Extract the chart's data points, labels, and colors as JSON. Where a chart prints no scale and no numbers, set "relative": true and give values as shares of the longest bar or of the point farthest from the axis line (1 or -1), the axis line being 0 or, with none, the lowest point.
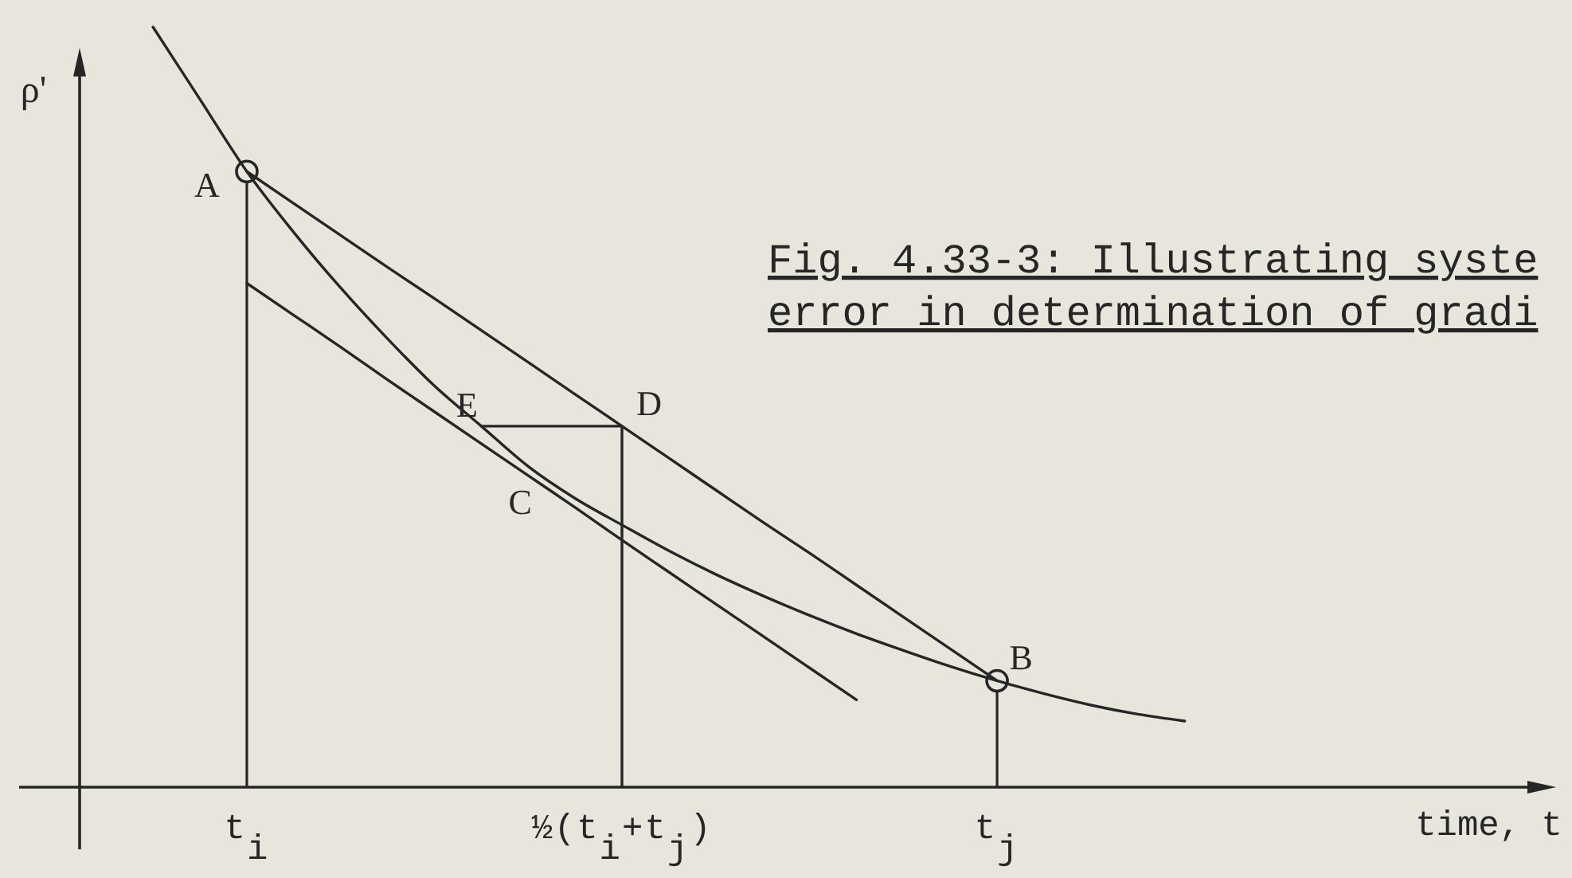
{
  "chart_data": {
    "type": "line",
    "relative": true,
    "ylabel": "ρ'",
    "categories": [
      null,
      null,
      "t$_{i}$",
      null,
      null,
      null,
      null,
      null,
      null,
      null,
      "½(t$_{i}$+t$_{j}$)",
      null,
      null,
      null,
      null,
      null,
      null,
      null,
      "t$_{j}$",
      null,
      null,
      null,
      null
    ],
    "series": [
      {
        "color": "#262626",
        "values": [
          1,
          0.905,
          0.81,
          0.73,
          0.657,
          0.59,
          0.528,
          0.475,
          0.422,
          0.38,
          0.345,
          0.311,
          0.28,
          0.252,
          0.226,
          0.202,
          0.18,
          0.159,
          0.14,
          0.123,
          0.108,
          0.096,
          0.087
        ]
      },
      {
        "color": "#262626",
        "values": [
          null,
          null,
          0.81,
          0.768,
          0.726,
          0.684,
          0.643,
          0.601,
          0.559,
          0.517,
          0.475,
          0.433,
          0.391,
          0.349,
          0.308,
          0.266,
          0.224,
          0.182,
          0.14,
          null,
          null,
          null,
          null
        ]
      },
      {
        "color": "#262626",
        "values": [
          null,
          null,
          0.663,
          0.621,
          0.579,
          0.536,
          0.494,
          0.452,
          0.41,
          0.368,
          0.325,
          0.283,
          0.241,
          0.199,
          0.157,
          0.115,
          null,
          null,
          null,
          null,
          null,
          null,
          null
        ]
      },
      {
        "color": "#262626",
        "values": [
          null,
          null,
          null,
          null,
          null,
          null,
          null,
          0.475,
          0.475,
          0.475,
          0.475,
          null,
          null,
          null,
          null,
          null,
          null,
          null,
          null,
          null,
          null,
          null,
          null
        ]
      },
      {
        "type": "lollipop",
        "marker": "circle",
        "color": "#262626",
        "values": [
          null,
          null,
          0.81,
          null,
          null,
          null,
          null,
          null,
          null,
          null,
          null,
          null,
          null,
          null,
          null,
          null,
          null,
          null,
          0.14,
          null,
          null,
          null,
          null
        ]
      },
      {
        "type": "bar",
        "color": "#262626",
        "values": [
          null,
          null,
          null,
          null,
          null,
          null,
          null,
          null,
          null,
          null,
          0.475,
          null,
          null,
          null,
          null,
          null,
          null,
          null,
          null,
          null,
          null,
          null,
          null
        ]
      }
    ],
    "annotations": [
      "Fig. 4.33-3: Illustrating syste",
      "error in determination of gradi",
      "time, t",
      {
        "text": "A",
        "x": "t$_{i}$",
        "y": 0.81
      },
      {
        "text": "B",
        "x": "t$_{j}$",
        "y": 0.14
      },
      {
        "text": "C",
        "y": 0.422
      },
      {
        "text": "D",
        "x": "½(t$_{i}$+t$_{j}$)",
        "y": 0.475
      },
      {
        "text": "E",
        "y": 0.475
      }
    ]
  }
}
